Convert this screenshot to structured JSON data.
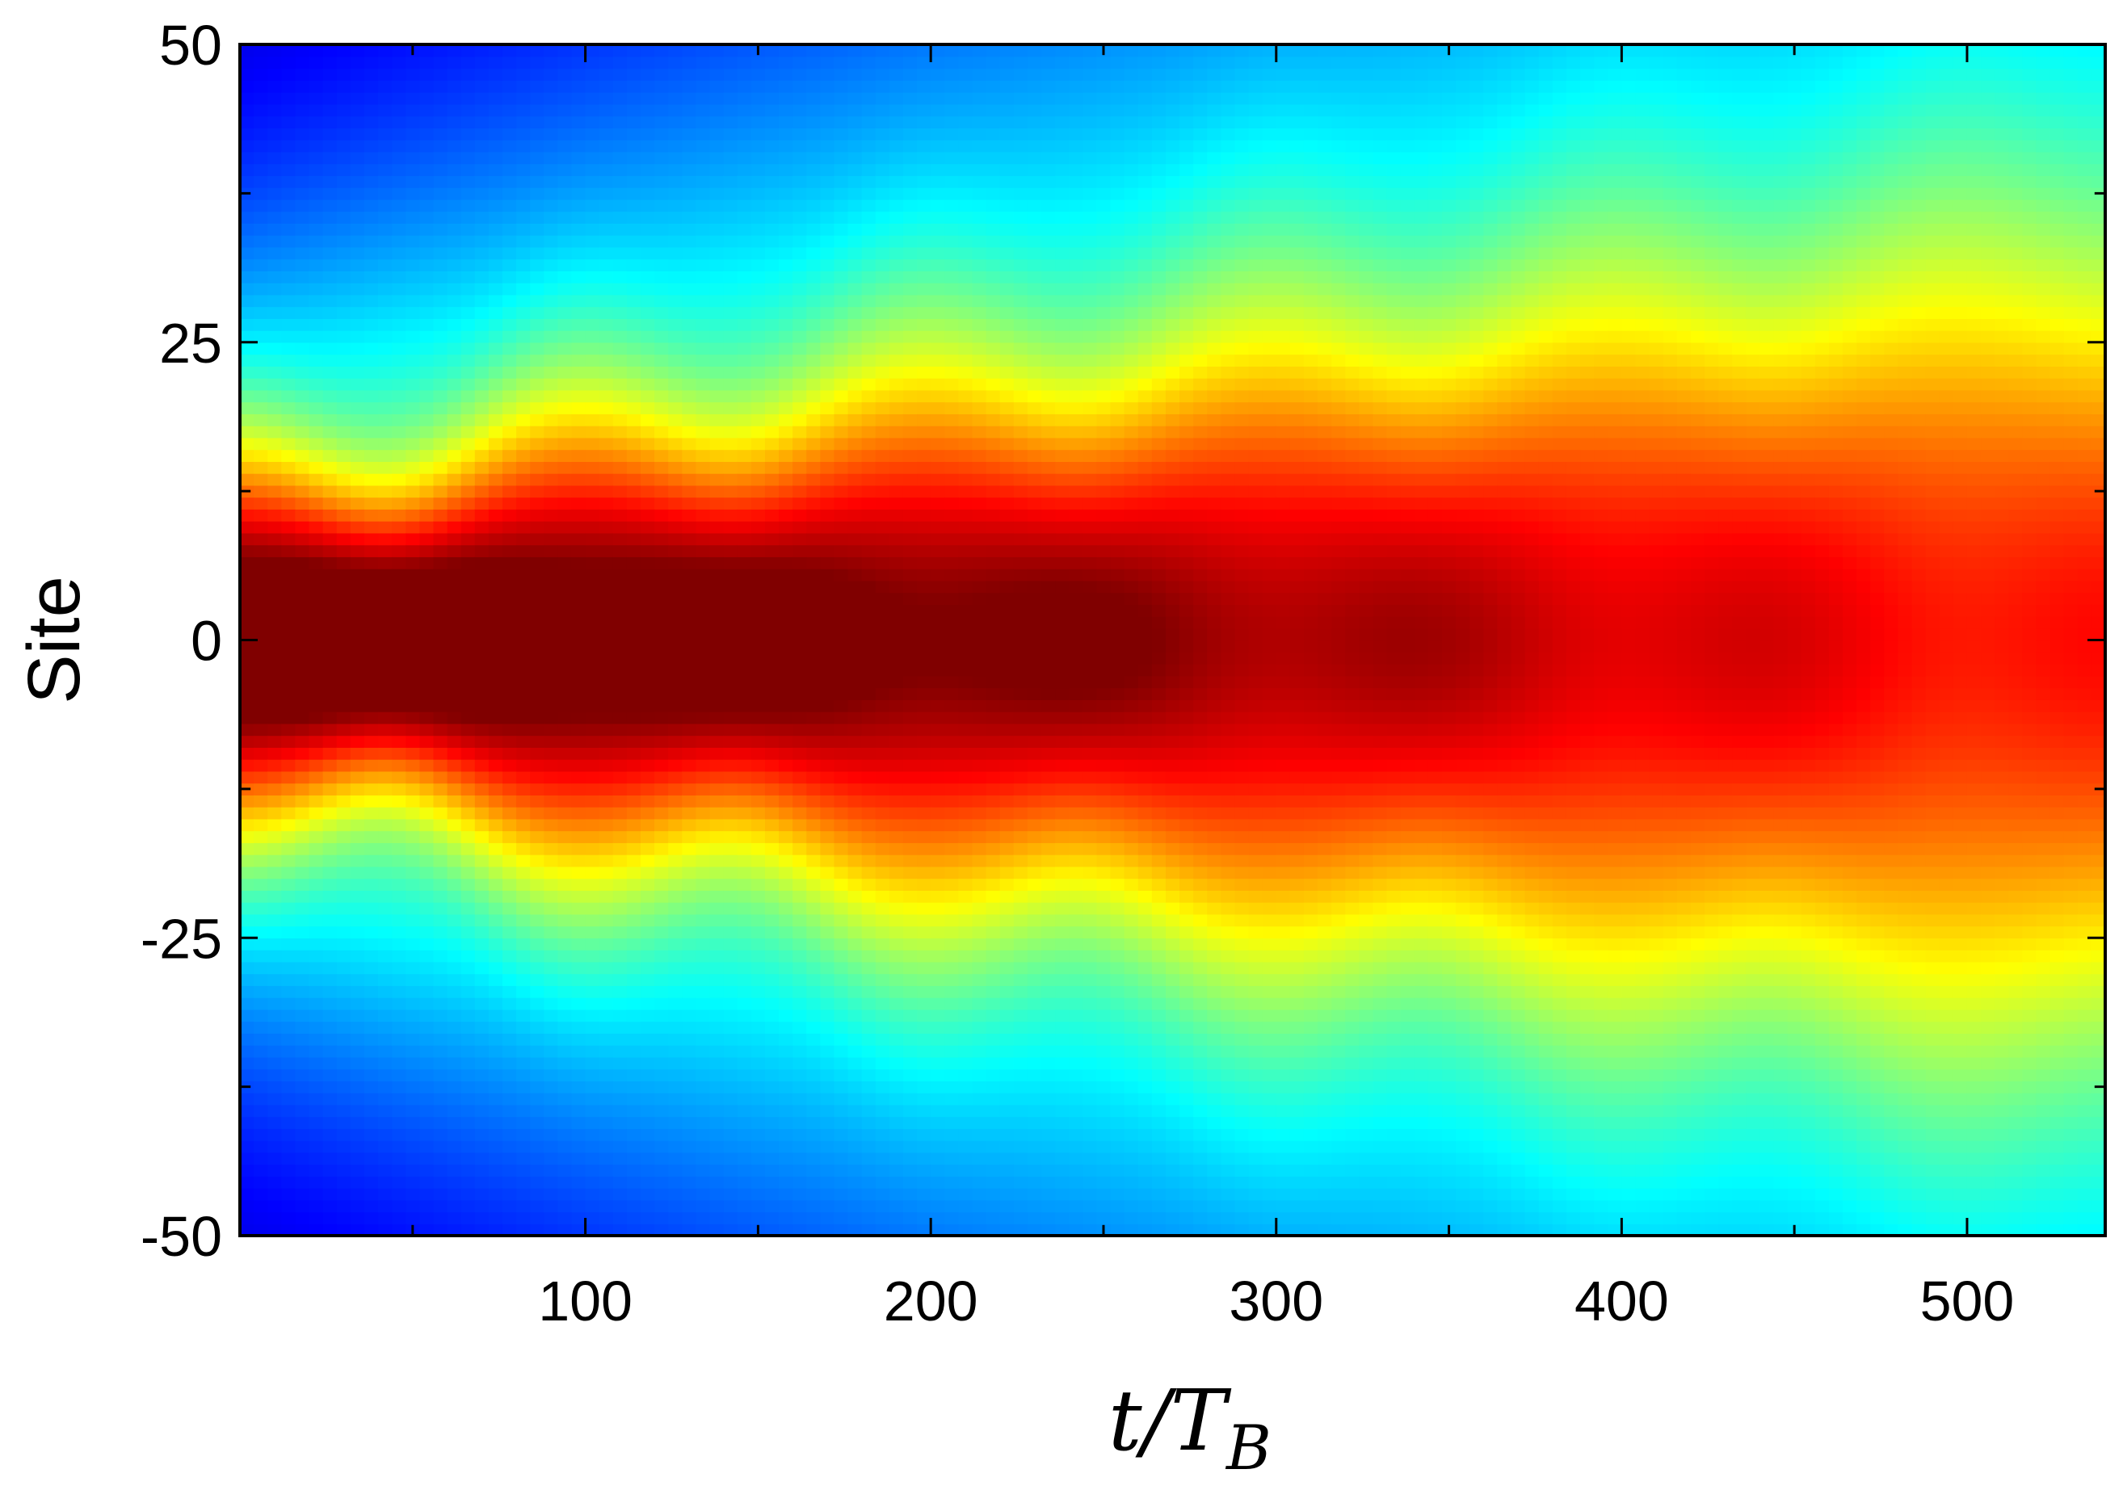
{
  "chart_data": {
    "type": "heatmap",
    "title": "",
    "xlabel": "t/T",
    "xlabel_subscript": "B",
    "ylabel": "Site",
    "xlim": [
      0,
      540
    ],
    "ylim": [
      -50,
      50
    ],
    "xticks": [
      100,
      200,
      300,
      400,
      500
    ],
    "xtick_labels": [
      "100",
      "200",
      "300",
      "400",
      "500"
    ],
    "yticks": [
      -50,
      -25,
      0,
      25,
      50
    ],
    "ytick_labels": [
      "-50",
      "-25",
      "0",
      "25",
      "50"
    ],
    "colormap": "jet",
    "grid": false,
    "legend": "none",
    "pattern": {
      "description_values": "density of a wavepacket centered near site 0 that breathes with period ~100 T_B and spreads slowly",
      "center_site": 0,
      "breathing_period": 100,
      "max_peaks_at_t": [
        45,
        150,
        255,
        360,
        470
      ]
    }
  }
}
